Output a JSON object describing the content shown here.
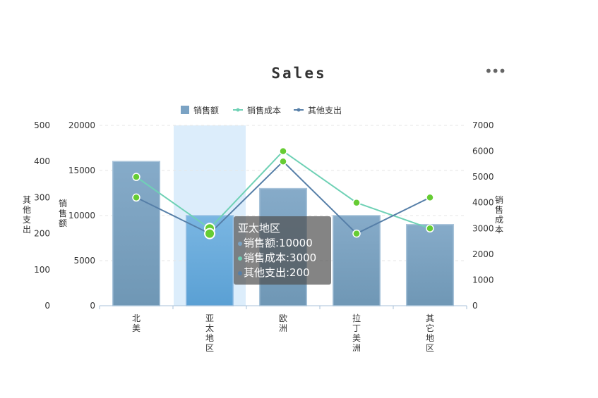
{
  "chart_data": {
    "type": "bar",
    "title": "Sales",
    "categories": [
      "北美",
      "亚太地区",
      "欧洲",
      "拉丁美洲",
      "其它地区"
    ],
    "series": [
      {
        "name": "销售额",
        "type": "bar",
        "axis": "left-inner",
        "values": [
          16000,
          10000,
          13000,
          10000,
          9000
        ]
      },
      {
        "name": "销售成本",
        "type": "line",
        "axis": "right",
        "values": [
          5000,
          3000,
          6000,
          4000,
          3000
        ]
      },
      {
        "name": "其他支出",
        "type": "line",
        "axis": "left-outer",
        "values": [
          300,
          200,
          400,
          200,
          300
        ]
      }
    ],
    "axes": {
      "left_outer": {
        "label": "其他支出",
        "ylim": [
          0,
          500
        ],
        "ticks": [
          "0",
          "100",
          "200",
          "300",
          "400",
          "500"
        ]
      },
      "left_inner": {
        "label": "销售额",
        "ylim": [
          0,
          20000
        ],
        "ticks": [
          "0",
          "5000",
          "10000",
          "15000",
          "20000"
        ]
      },
      "right": {
        "label": "销售成本",
        "ylim": [
          0,
          7000
        ],
        "ticks": [
          "0",
          "1000",
          "2000",
          "3000",
          "4000",
          "5000",
          "6000",
          "7000"
        ]
      }
    },
    "grid": true,
    "legend": "top-center"
  },
  "colors": {
    "bar": "#7ba3c4",
    "bar_highlight": "#6fb0e0",
    "cost_line": "#6fd1b5",
    "other_line": "#567fa8",
    "point": "#66cc33",
    "axis": "#a9c2d9",
    "text": "#333333",
    "hover_band": "#dcedfb"
  },
  "highlight_index": 1,
  "menu_icon": "more-horizontal-icon",
  "tooltip": {
    "title": "亚太地区",
    "rows": [
      "销售额:10000",
      "销售成本:3000",
      "其他支出:200"
    ]
  }
}
